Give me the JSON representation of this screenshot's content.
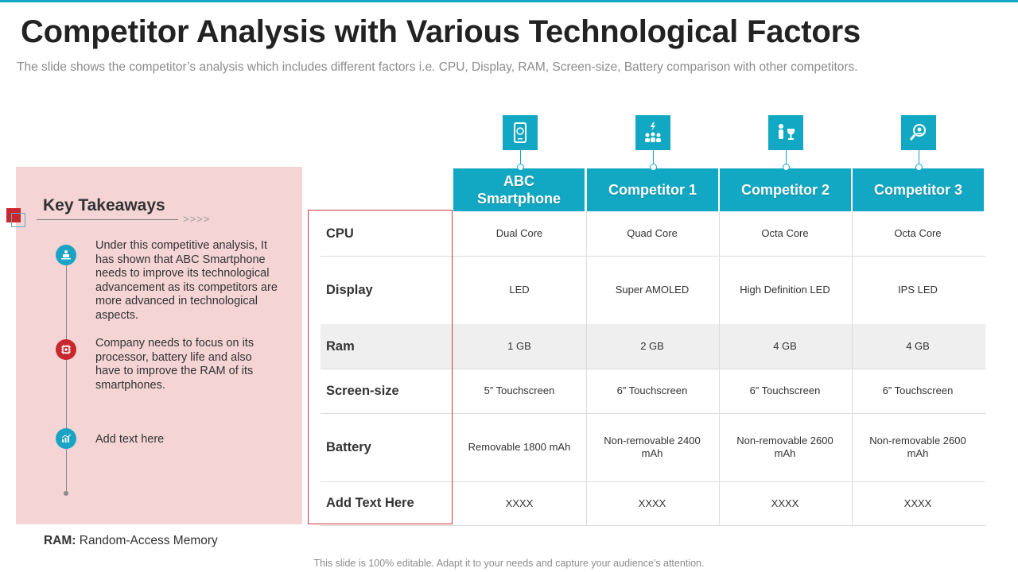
{
  "title": "Competitor Analysis with Various Technological Factors",
  "subtitle": "The slide shows the competitor’s analysis which includes different factors i.e. CPU, Display, RAM, Screen-size, Battery comparison with other competitors.",
  "takeaways": {
    "heading": "Key Takeaways",
    "arrows": ">>>>",
    "items": [
      {
        "text": "Under this competitive analysis, It has shown that ABC Smartphone needs to improve its technological advancement as its competitors are more advanced in technological aspects.",
        "icon": "network-person-icon"
      },
      {
        "text": "Company needs to focus on its processor, battery life and also have to improve the RAM of its smartphones.",
        "icon": "chip-icon"
      },
      {
        "text": "Add text here",
        "icon": "bar-chart-icon"
      }
    ]
  },
  "table": {
    "columns": [
      {
        "label": "ABC Smartphone",
        "icon": "phone-icon"
      },
      {
        "label": "Competitor 1",
        "icon": "team-icon"
      },
      {
        "label": "Competitor 2",
        "icon": "trophy-person-icon"
      },
      {
        "label": "Competitor 3",
        "icon": "magnifier-person-icon"
      }
    ],
    "rows": [
      {
        "label": "CPU",
        "values": [
          "Dual Core",
          "Quad Core",
          "Octa Core",
          "Octa Core"
        ]
      },
      {
        "label": "Display",
        "values": [
          "LED",
          "Super AMOLED",
          "High Definition LED",
          "IPS LED"
        ]
      },
      {
        "label": "Ram",
        "values": [
          "1 GB",
          "2 GB",
          "4 GB",
          "4 GB"
        ]
      },
      {
        "label": "Screen-size",
        "values": [
          "5” Touchscreen",
          "6” Touchscreen",
          "6” Touchscreen",
          "6” Touchscreen"
        ]
      },
      {
        "label": "Battery",
        "values": [
          "Removable  1800 mAh",
          "Non-removable  2400 mAh",
          "Non-removable  2600 mAh",
          "Non-removable  2600 mAh"
        ]
      },
      {
        "label": "Add Text Here",
        "values": [
          "XXXX",
          "XXXX",
          "XXXX",
          "XXXX"
        ]
      }
    ]
  },
  "ram_note": {
    "term": "RAM:",
    "definition": " Random-Access Memory"
  },
  "footer": "This slide is 100% editable. Adapt it to your needs and capture your audience's attention.",
  "colors": {
    "accent": "#12a8c3",
    "panel": "#f4d4d4",
    "highlight": "#c8272e"
  }
}
